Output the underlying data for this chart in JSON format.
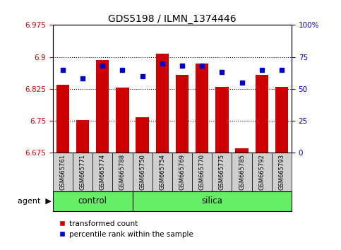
{
  "title": "GDS5198 / ILMN_1374446",
  "samples": [
    "GSM665761",
    "GSM665771",
    "GSM665774",
    "GSM665788",
    "GSM665750",
    "GSM665754",
    "GSM665769",
    "GSM665770",
    "GSM665775",
    "GSM665785",
    "GSM665792",
    "GSM665793"
  ],
  "groups": [
    "control",
    "control",
    "control",
    "control",
    "silica",
    "silica",
    "silica",
    "silica",
    "silica",
    "silica",
    "silica",
    "silica"
  ],
  "red_values": [
    6.835,
    6.752,
    6.893,
    6.828,
    6.758,
    6.907,
    6.858,
    6.885,
    6.83,
    6.685,
    6.858,
    6.83
  ],
  "blue_values_pct": [
    65,
    58,
    68,
    65,
    60,
    70,
    68,
    68,
    63,
    55,
    65,
    65
  ],
  "y_min": 6.675,
  "y_max": 6.975,
  "y_ticks": [
    6.675,
    6.75,
    6.825,
    6.9,
    6.975
  ],
  "y_tick_labels": [
    "6.675",
    "6.75",
    "6.825",
    "6.9",
    "6.975"
  ],
  "y2_ticks": [
    0,
    25,
    50,
    75,
    100
  ],
  "y2_tick_labels": [
    "0",
    "25",
    "50",
    "75",
    "100%"
  ],
  "dotted_lines": [
    6.75,
    6.825,
    6.9
  ],
  "bar_base": 6.675,
  "bar_color": "#cc0000",
  "blue_color": "#0000cc",
  "green_color": "#66ee66",
  "title_fontsize": 10
}
